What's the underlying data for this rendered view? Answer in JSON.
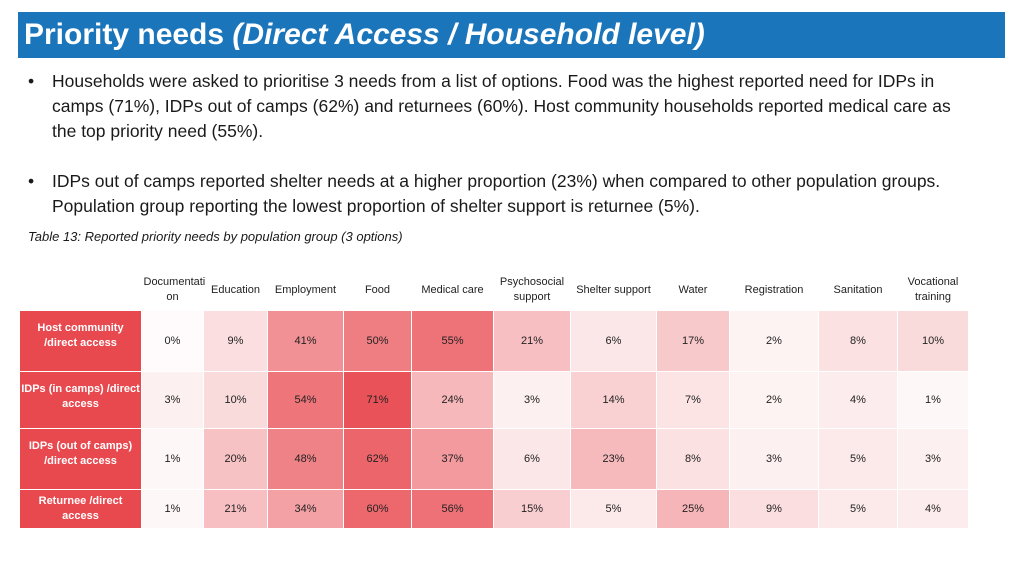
{
  "slide": {
    "title_main": "Priority needs ",
    "title_sub": "(Direct Access / Household level)",
    "bullets": [
      "Households were asked to prioritise 3 needs from a list of options. Food was the highest reported need for IDPs in camps (71%), IDPs out of camps (62%) and returnees (60%). Host community households reported medical care as the top priority need (55%).",
      "IDPs out of camps reported shelter needs at a higher proportion (23%) when compared to other population groups. Population group reporting the lowest proportion of shelter support is returnee (5%)."
    ],
    "caption": "Table 13: Reported priority needs by population group (3 options)"
  },
  "table": {
    "headers": [
      "Documentati on",
      "Education",
      "Employment",
      "Food",
      "Medical care",
      "Psychosocial support",
      "Shelter support",
      "Water",
      "Registration",
      "Sanitation",
      "Vocational training"
    ],
    "rows": [
      {
        "label": "Host community /direct access",
        "values": [
          "0%",
          "9%",
          "41%",
          "50%",
          "55%",
          "21%",
          "6%",
          "17%",
          "2%",
          "8%",
          "10%"
        ],
        "numbers": [
          0,
          9,
          41,
          50,
          55,
          21,
          6,
          17,
          2,
          8,
          10
        ]
      },
      {
        "label": "IDPs (in camps) /direct access",
        "values": [
          "3%",
          "10%",
          "54%",
          "71%",
          "24%",
          "3%",
          "14%",
          "7%",
          "2%",
          "4%",
          "1%"
        ],
        "numbers": [
          3,
          10,
          54,
          71,
          24,
          3,
          14,
          7,
          2,
          4,
          1
        ]
      },
      {
        "label": "IDPs (out of camps) /direct access",
        "values": [
          "1%",
          "20%",
          "48%",
          "62%",
          "37%",
          "6%",
          "23%",
          "8%",
          "3%",
          "5%",
          "3%"
        ],
        "numbers": [
          1,
          20,
          48,
          62,
          37,
          6,
          23,
          8,
          3,
          5,
          3
        ]
      },
      {
        "label": "Returnee /direct access",
        "values": [
          "1%",
          "21%",
          "34%",
          "60%",
          "56%",
          "15%",
          "5%",
          "25%",
          "9%",
          "5%",
          "4%"
        ],
        "numbers": [
          1,
          21,
          34,
          60,
          56,
          15,
          5,
          25,
          9,
          5,
          4
        ]
      }
    ],
    "heat_color": "#e8494f",
    "row_header_color": "#e8494f",
    "title_bar_color": "#1b75bb"
  }
}
